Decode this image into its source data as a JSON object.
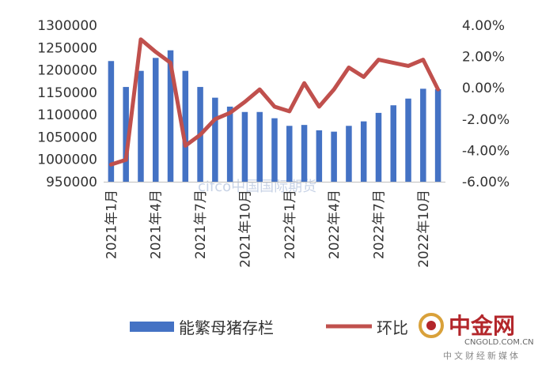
{
  "chart_data": {
    "type": "bar+line",
    "title": "",
    "categories": [
      "2021年1月",
      "2021年2月",
      "2021年3月",
      "2021年4月",
      "2021年5月",
      "2021年6月",
      "2021年7月",
      "2021年8月",
      "2021年9月",
      "2021年10月",
      "2021年11月",
      "2021年12月",
      "2022年1月",
      "2022年2月",
      "2022年3月",
      "2022年4月",
      "2022年5月",
      "2022年6月",
      "2022年7月",
      "2022年8月",
      "2022年9月",
      "2022年10月",
      "2022年11月"
    ],
    "x_tick_labels": [
      "2021年1月",
      "2021年4月",
      "2021年7月",
      "2021年10月",
      "2022年1月",
      "2022年4月",
      "2022年7月",
      "2022年10月"
    ],
    "series": [
      {
        "name": "能繁母猪存栏",
        "type": "bar",
        "axis": "left",
        "color": "#4472c4",
        "values": [
          1220000,
          1162000,
          1198000,
          1227000,
          1244000,
          1198000,
          1162000,
          1138000,
          1118000,
          1106000,
          1106000,
          1092000,
          1075000,
          1077000,
          1065000,
          1062000,
          1075000,
          1085000,
          1104000,
          1121000,
          1136000,
          1158000,
          1157000
        ]
      },
      {
        "name": "环比",
        "type": "line",
        "axis": "right",
        "color": "#c0504d",
        "values": [
          -4.9,
          -4.6,
          3.1,
          2.3,
          1.6,
          -3.7,
          -3.0,
          -2.0,
          -1.6,
          -0.9,
          -0.1,
          -1.2,
          -1.5,
          0.3,
          -1.2,
          -0.1,
          1.3,
          0.7,
          1.8,
          1.6,
          1.4,
          1.8,
          -0.1
        ]
      }
    ],
    "y_left": {
      "min": 950000,
      "max": 1300000,
      "step": 50000,
      "tick_labels": [
        "950000",
        "1000000",
        "1050000",
        "1100000",
        "1150000",
        "1200000",
        "1250000",
        "1300000"
      ]
    },
    "y_right": {
      "min": -6,
      "max": 4,
      "step": 2,
      "tick_labels": [
        "-6.00%",
        "-4.00%",
        "-2.00%",
        "0.00%",
        "2.00%",
        "4.00%"
      ]
    },
    "legend": {
      "placement": "bottom",
      "entries": [
        "能繁母猪存栏",
        "环比"
      ]
    },
    "grid": false
  },
  "watermark": {
    "text": "cifco中国国际期货"
  },
  "logo": {
    "name": "中金网",
    "domain": "CNGOLD.COM.CN",
    "tagline": "中文财经新媒体",
    "icon": "cngold-ring-icon"
  }
}
